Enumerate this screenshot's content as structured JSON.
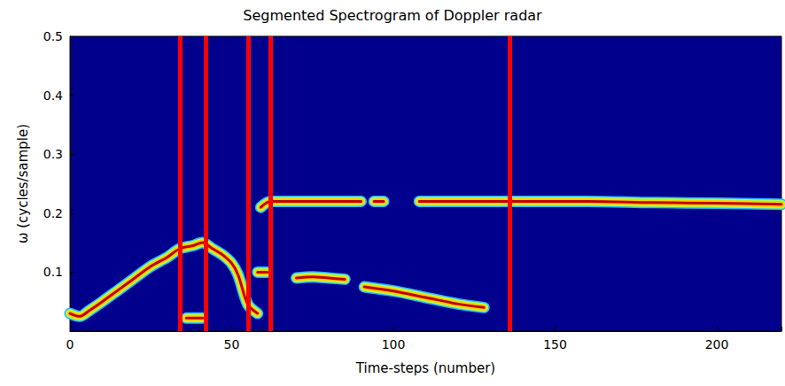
{
  "chart_data": {
    "type": "spectrogram",
    "title": "Segmented Spectrogram of Doppler radar",
    "x_label": "Time-steps (number)",
    "y_label": "ω (cycles/sample)",
    "xlim": [
      0,
      220
    ],
    "ylim": [
      0,
      0.5
    ],
    "xticks": [
      0,
      50,
      100,
      150,
      200
    ],
    "yticks": [
      0.1,
      0.2,
      0.3,
      0.4,
      0.5
    ],
    "grid": false,
    "color": "#00008c",
    "series": [
      {
        "type": "ridge",
        "x": [
          0,
          3,
          6,
          10,
          15,
          20,
          25,
          30,
          34,
          38,
          41,
          44,
          47,
          50,
          52,
          55,
          58
        ],
        "values": [
          0.03,
          0.025,
          0.035,
          0.05,
          0.07,
          0.09,
          0.11,
          0.125,
          0.14,
          0.145,
          0.15,
          0.14,
          0.13,
          0.115,
          0.095,
          0.045,
          0.03
        ]
      },
      {
        "type": "ridge",
        "x": [
          36,
          41
        ],
        "values": [
          0.022,
          0.022
        ]
      },
      {
        "type": "ridge",
        "x": [
          59,
          62,
          70,
          80,
          90,
          91,
          94,
          97,
          98,
          108,
          112,
          120,
          140,
          160,
          180,
          200,
          220
        ],
        "values": [
          0.21,
          0.22,
          0.22,
          0.22,
          0.22,
          null,
          0.22,
          0.22,
          null,
          0.22,
          0.22,
          0.22,
          0.22,
          0.22,
          0.218,
          0.217,
          0.215
        ]
      },
      {
        "type": "ridge",
        "x": [
          58,
          61,
          62,
          70,
          75,
          80,
          85,
          86,
          91,
          100,
          110,
          120,
          128
        ],
        "values": [
          0.1,
          0.1,
          null,
          0.09,
          0.092,
          0.09,
          0.088,
          null,
          0.075,
          0.068,
          0.057,
          0.046,
          0.04
        ]
      },
      {
        "type": "boundary",
        "color": "#ff0000",
        "x": [
          34,
          42,
          55,
          62,
          136
        ]
      }
    ]
  }
}
